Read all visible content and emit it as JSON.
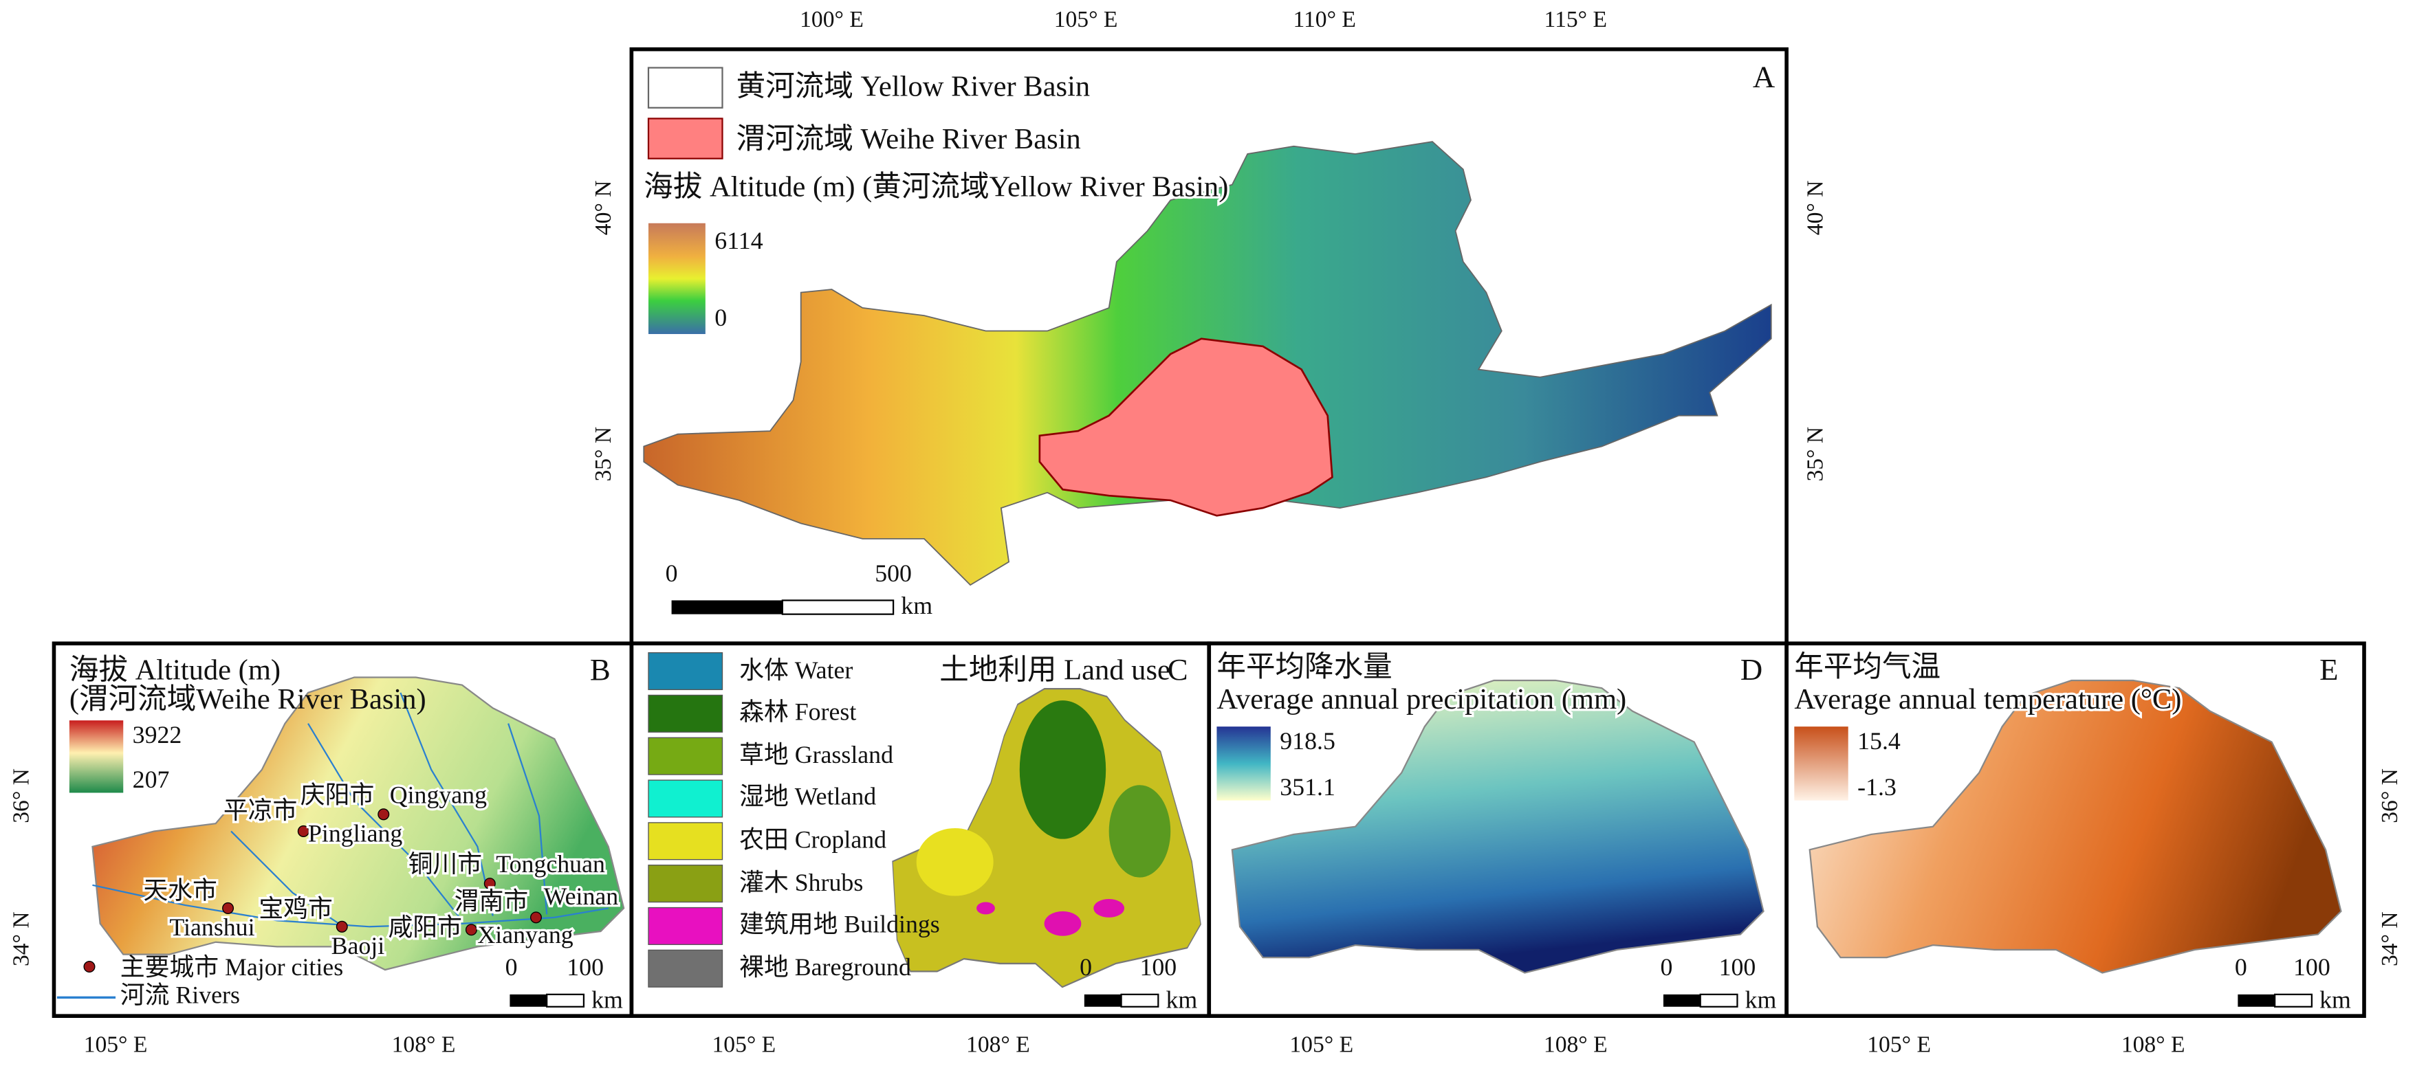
{
  "panel_a": {
    "label": "A",
    "top_ticks": [
      "100° E",
      "105° E",
      "110° E",
      "115° E"
    ],
    "left_ticks": [
      "40° N",
      "35° N"
    ],
    "right_ticks": [
      "40° N",
      "35° N"
    ],
    "legend": [
      "黄河流域 Yellow River Basin",
      "渭河流域 Weihe River Basin"
    ],
    "altitude_title": "海拔  Altitude (m) (黄河流域Yellow River Basin)",
    "altitude_max": 6114,
    "altitude_min": 0,
    "scale": {
      "start": 0,
      "end": 500,
      "unit": "km"
    }
  },
  "panel_b": {
    "label": "B",
    "title_lines": [
      "海拔 Altitude (m)",
      "(渭河流域Weihe River Basin)"
    ],
    "altitude_max": 3922,
    "altitude_min": 207,
    "cities": [
      {
        "zh": "平凉市",
        "en": "Pingliang"
      },
      {
        "zh": "庆阳市",
        "en": "Qingyang"
      },
      {
        "zh": "铜川市",
        "en": "Tongchuan"
      },
      {
        "zh": "天水市",
        "en": "Tianshui"
      },
      {
        "zh": "宝鸡市",
        "en": "Baoji"
      },
      {
        "zh": "咸阳市",
        "en": "Xianyang"
      },
      {
        "zh": "渭南市",
        "en": "Weinan"
      }
    ],
    "legend": [
      "主要城市 Major cities",
      "河流 Rivers"
    ],
    "scale": {
      "start": 0,
      "end": 100,
      "unit": "km"
    }
  },
  "panel_c": {
    "label": "C",
    "title": "土地利用 Land use",
    "legend": [
      "水体 Water",
      "森林 Forest",
      "草地 Grassland",
      "湿地 Wetland",
      "农田 Cropland",
      "灌木 Shrubs",
      "建筑用地 Buildings",
      "裸地 Bareground"
    ],
    "scale": {
      "start": 0,
      "end": 100,
      "unit": "km"
    }
  },
  "panel_d": {
    "label": "D",
    "title_lines": [
      "年平均降水量",
      "Average annual precipitation (mm)"
    ],
    "max": 918.5,
    "min": 351.1,
    "scale": {
      "start": 0,
      "end": 100,
      "unit": "km"
    }
  },
  "panel_e": {
    "label": "E",
    "title_lines": [
      "年平均气温",
      "Average annual temperature (°C)"
    ],
    "max": 15.4,
    "min": -1.3,
    "scale": {
      "start": 0,
      "end": 100,
      "unit": "km"
    }
  },
  "bottom_ticks": [
    "105° E",
    "108° E"
  ],
  "side_ticks": [
    "36° N",
    "34° N"
  ]
}
